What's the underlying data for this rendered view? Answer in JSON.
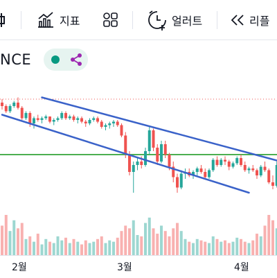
{
  "toolbar": {
    "items": [
      {
        "label": "",
        "icon": "bar-style-icon"
      },
      {
        "label": "지표",
        "icon": "indicators-icon"
      },
      {
        "label": "",
        "icon": "layout-grid-icon"
      },
      {
        "label": "얼러트",
        "icon": "alert-clock-icon"
      },
      {
        "label": "리플",
        "icon": "replay-icon"
      }
    ]
  },
  "symbol": {
    "text": "NCE"
  },
  "colors": {
    "up": "#26a69a",
    "down": "#ef5350",
    "trendline": "#3a62c9",
    "horizontal": "#4caf50",
    "price_line": "#ef5350",
    "accent_green": "#089981",
    "accent_purple": "#9c27b0"
  },
  "xaxis": {
    "labels": [
      "2월",
      "3월",
      "4월"
    ]
  },
  "chart_data": {
    "type": "candlestick",
    "x_ticks": [
      "2월",
      "3월",
      "4월"
    ],
    "candles": [
      [
        94,
        96,
        90,
        92
      ],
      [
        92,
        93,
        88,
        89
      ],
      [
        89,
        93,
        88,
        92
      ],
      [
        92,
        95,
        91,
        94
      ],
      [
        94,
        97,
        90,
        91
      ],
      [
        91,
        92,
        84,
        85
      ],
      [
        85,
        89,
        84,
        88
      ],
      [
        88,
        89,
        80,
        82
      ],
      [
        82,
        86,
        79,
        85
      ],
      [
        85,
        87,
        83,
        84
      ],
      [
        84,
        86,
        82,
        85
      ],
      [
        85,
        87,
        84,
        86
      ],
      [
        86,
        86,
        82,
        83
      ],
      [
        83,
        85,
        81,
        84
      ],
      [
        84,
        86,
        83,
        85
      ],
      [
        85,
        89,
        84,
        88
      ],
      [
        88,
        89,
        84,
        85
      ],
      [
        85,
        87,
        84,
        86
      ],
      [
        86,
        87,
        83,
        84
      ],
      [
        84,
        86,
        82,
        85
      ],
      [
        85,
        86,
        82,
        83
      ],
      [
        83,
        84,
        80,
        82
      ],
      [
        82,
        85,
        81,
        84
      ],
      [
        84,
        86,
        83,
        85
      ],
      [
        85,
        86,
        82,
        83
      ],
      [
        83,
        84,
        79,
        80
      ],
      [
        80,
        82,
        78,
        81
      ],
      [
        81,
        83,
        79,
        82
      ],
      [
        82,
        84,
        80,
        83
      ],
      [
        83,
        84,
        80,
        81
      ],
      [
        81,
        82,
        74,
        75
      ],
      [
        75,
        77,
        62,
        64
      ],
      [
        64,
        66,
        52,
        54
      ],
      [
        54,
        60,
        42,
        58
      ],
      [
        58,
        62,
        55,
        60
      ],
      [
        60,
        63,
        56,
        58
      ],
      [
        58,
        68,
        57,
        66
      ],
      [
        66,
        80,
        64,
        78
      ],
      [
        78,
        79,
        66,
        68
      ],
      [
        68,
        70,
        58,
        60
      ],
      [
        60,
        72,
        59,
        70
      ],
      [
        70,
        72,
        62,
        64
      ],
      [
        64,
        65,
        55,
        57
      ],
      [
        57,
        60,
        48,
        51
      ],
      [
        51,
        53,
        42,
        45
      ],
      [
        45,
        55,
        44,
        53
      ],
      [
        53,
        56,
        50,
        54
      ],
      [
        54,
        56,
        51,
        52
      ],
      [
        52,
        55,
        50,
        54
      ],
      [
        54,
        57,
        52,
        56
      ],
      [
        56,
        58,
        53,
        54
      ],
      [
        54,
        56,
        50,
        51
      ],
      [
        51,
        56,
        50,
        55
      ],
      [
        55,
        62,
        54,
        61
      ],
      [
        61,
        63,
        57,
        58
      ],
      [
        58,
        62,
        57,
        61
      ],
      [
        61,
        63,
        58,
        60
      ],
      [
        60,
        61,
        55,
        57
      ],
      [
        57,
        60,
        56,
        59
      ],
      [
        59,
        63,
        58,
        62
      ],
      [
        62,
        64,
        57,
        58
      ],
      [
        58,
        60,
        54,
        55
      ],
      [
        55,
        57,
        53,
        56
      ],
      [
        56,
        58,
        54,
        55
      ],
      [
        55,
        56,
        50,
        52
      ],
      [
        52,
        58,
        51,
        57
      ],
      [
        57,
        60,
        54,
        55
      ],
      [
        55,
        56,
        47,
        48
      ],
      [
        48,
        52,
        44,
        46
      ],
      [
        46,
        60,
        45,
        58
      ]
    ],
    "volumes": [
      22,
      30,
      18,
      26,
      20,
      24,
      12,
      14,
      10,
      16,
      8,
      12,
      10,
      9,
      14,
      11,
      13,
      9,
      12,
      10,
      8,
      11,
      9,
      10,
      12,
      14,
      9,
      11,
      10,
      13,
      18,
      22,
      20,
      26,
      15,
      14,
      24,
      28,
      20,
      16,
      22,
      18,
      14,
      20,
      24,
      18,
      12,
      10,
      9,
      12,
      11,
      10,
      9,
      14,
      12,
      10,
      11,
      9,
      10,
      13,
      12,
      10,
      9,
      11,
      16,
      14,
      22,
      30,
      26,
      20
    ],
    "trendlines": [
      {
        "color": "trendline",
        "from": [
          10,
          97
        ],
        "to": [
          70,
          60
        ]
      },
      {
        "color": "trendline",
        "from": [
          0,
          87
        ],
        "to": [
          62,
          42
        ]
      }
    ],
    "horizontal_lines": [
      {
        "value": 64,
        "style": "solid"
      },
      {
        "value": 96,
        "style": "dotted"
      }
    ],
    "ylim": [
      30,
      110
    ]
  }
}
